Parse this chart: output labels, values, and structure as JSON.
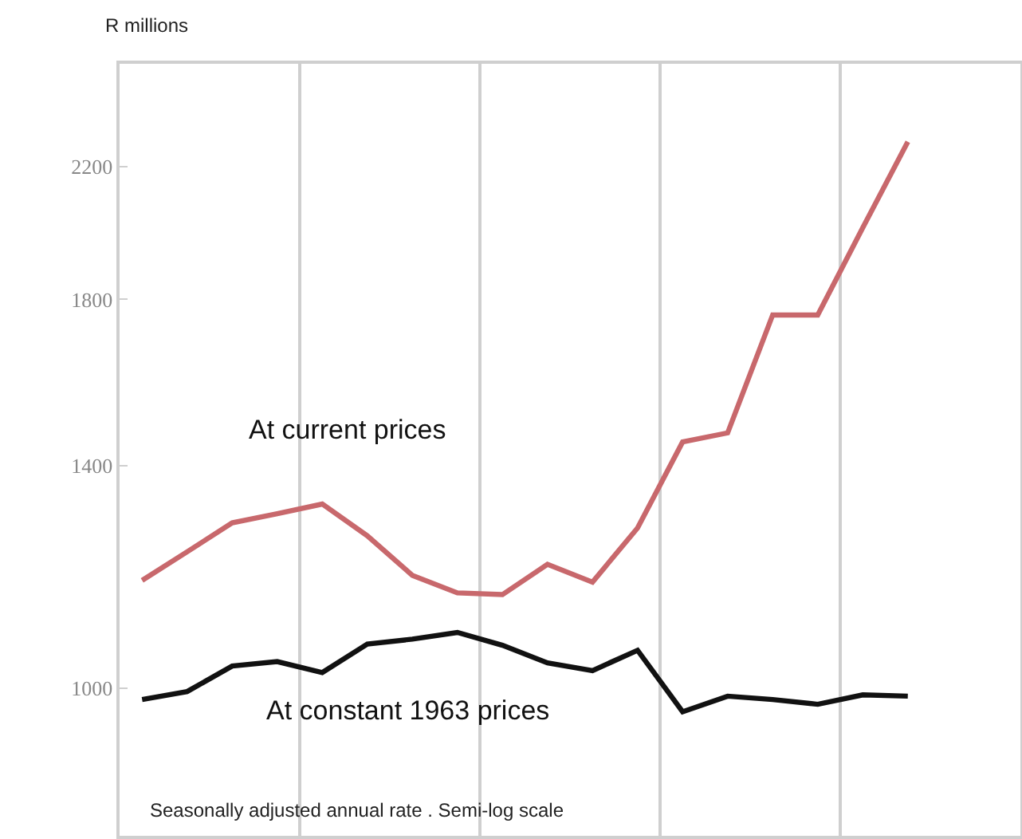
{
  "chart_data": {
    "type": "line",
    "ylabel": "R millions",
    "categories": [
      null,
      null,
      null,
      null,
      null,
      null,
      null,
      null,
      null,
      null,
      null,
      null,
      null,
      null,
      null,
      null,
      null,
      null
    ],
    "series": [
      {
        "name": "At current prices",
        "color": "#c8686c",
        "values": [
          1177,
          1229,
          1284,
          1302,
          1321,
          1259,
          1186,
          1155,
          1152,
          1206,
          1174,
          1274,
          1451,
          1471,
          1758,
          1758,
          2006,
          2284
        ]
      },
      {
        "name": "At constant 1963 prices",
        "color": "#111111",
        "values": [
          983,
          995,
          1034,
          1041,
          1024,
          1069,
          1077,
          1088,
          1067,
          1039,
          1027,
          1059,
          965,
          988,
          983,
          976,
          990,
          988
        ]
      }
    ],
    "log": true,
    "ylim": [
      800,
      2570
    ],
    "yticks": [
      1000,
      1400,
      1800,
      2200
    ],
    "tick_labels": "y",
    "grid": "x",
    "legend": false,
    "marker": "none",
    "line_style": "solid",
    "annotations": [
      "Seasonally adjusted annual rate . Semi-log scale"
    ]
  }
}
